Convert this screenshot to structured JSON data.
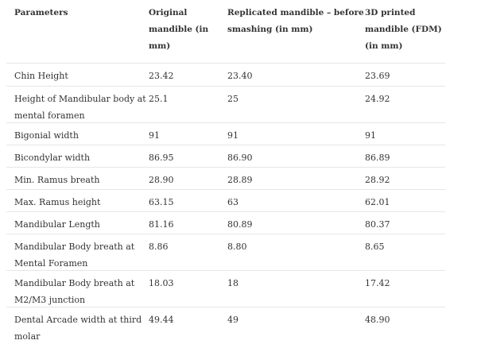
{
  "table": {
    "headers": [
      "Parameters",
      "Original mandible (in mm)",
      "Replicated mandible – before smashing (in mm)",
      "3D printed mandible (FDM) (in mm)"
    ],
    "rows": [
      [
        "Chin Height",
        "23.42",
        "23.40",
        "23.69"
      ],
      [
        "Height of Mandibular body at mental foramen",
        "25.1",
        "25",
        "24.92"
      ],
      [
        "Bigonial width",
        "91",
        "91",
        "91"
      ],
      [
        "Bicondylar width",
        "86.95",
        "86.90",
        "86.89"
      ],
      [
        "Min. Ramus breath",
        "28.90",
        "28.89",
        "28.92"
      ],
      [
        "Max. Ramus height",
        "63.15",
        "63",
        "62.01"
      ],
      [
        "Mandibular Length",
        "81.16",
        "80.89",
        "80.37"
      ],
      [
        "Mandibular Body breath at Mental Foramen",
        "8.86",
        "8.80",
        "8.65"
      ],
      [
        "Mandibular Body breath at M2/M3 junction",
        "18.03",
        "18",
        "17.42"
      ],
      [
        "Dental Arcade width at third molar",
        "49.44",
        "49",
        "48.90"
      ]
    ]
  }
}
